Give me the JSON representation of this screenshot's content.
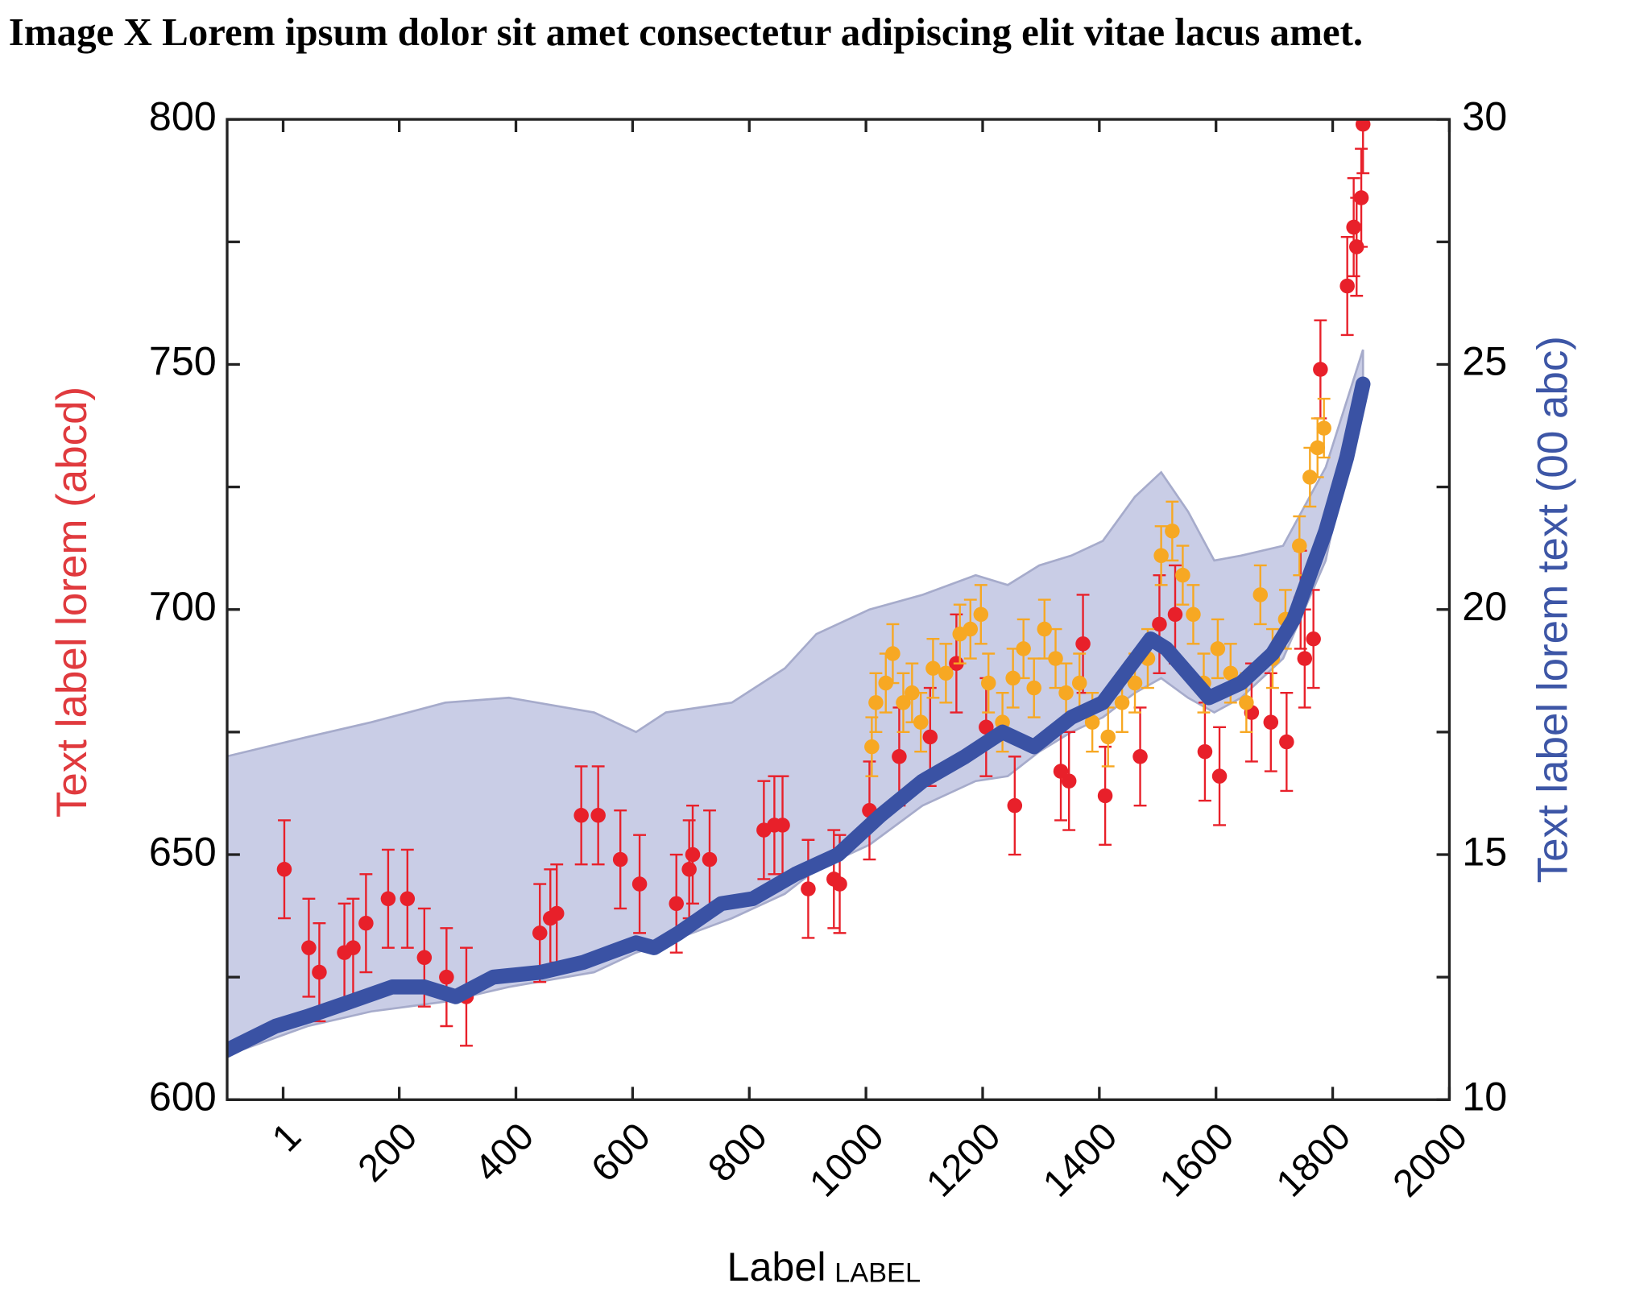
{
  "chart_data": {
    "type": "errorbar",
    "title": "Image X  Lorem ipsum dolor sit amet consectetur adipiscing elit vitae lacus amet.",
    "xlabel": "Label",
    "xlabel_unit": "LABEL",
    "ylabel": "Text label lorem (abcd)",
    "y2label": "Text label lorem text (00 abc)",
    "xlim": [
      -95,
      2000
    ],
    "xticks": [
      1,
      200,
      400,
      600,
      800,
      1000,
      1200,
      1400,
      1600,
      1800,
      2000
    ],
    "ylim": [
      600,
      800
    ],
    "yticks": [
      600,
      650,
      700,
      750,
      800
    ],
    "yminorticks": [
      625,
      675,
      725,
      775
    ],
    "y2lim": [
      10,
      30
    ],
    "y2ticks": [
      10,
      15,
      20,
      25,
      30
    ],
    "y2minorticks": [
      12.5,
      17.5,
      22.5,
      27.5
    ],
    "ylabel_color": "#e03a3e",
    "y2label_color": "#3d56a6",
    "series": [
      {
        "type": "band",
        "axis": "y2",
        "color": "#c9cde6",
        "edge_color": "#a6abcb",
        "x": [
          -97,
          43,
          152,
          279,
          388,
          534,
          606,
          657,
          770,
          861,
          915,
          1006,
          1097,
          1188,
          1243,
          1297,
          1352,
          1406,
          1461,
          1506,
          1552,
          1597,
          1643,
          1715,
          1788,
          1852
        ],
        "upper": [
          17.0,
          17.4,
          17.7,
          18.1,
          18.2,
          17.9,
          17.5,
          17.9,
          18.1,
          18.8,
          19.5,
          20.0,
          20.3,
          20.7,
          20.5,
          20.9,
          21.1,
          21.4,
          22.3,
          22.8,
          22.0,
          21.0,
          21.1,
          21.3,
          22.9,
          25.3
        ],
        "lower": [
          10.9,
          11.5,
          11.8,
          12.0,
          12.3,
          12.6,
          13.0,
          13.2,
          13.7,
          14.2,
          14.7,
          15.2,
          16.0,
          16.5,
          16.6,
          17.1,
          17.5,
          17.8,
          18.3,
          18.6,
          18.2,
          17.9,
          18.2,
          19.0,
          21.0,
          24.6
        ]
      },
      {
        "type": "errorbar",
        "color": "#e8202a",
        "x": [
          3,
          45,
          63,
          106,
          121,
          143,
          181,
          214,
          243,
          281,
          315,
          441,
          459,
          470,
          512,
          541,
          579,
          612,
          675,
          697,
          703,
          732,
          825,
          843,
          857,
          901,
          945,
          955,
          1006,
          1057,
          1110,
          1155,
          1206,
          1255,
          1334,
          1348,
          1372,
          1410,
          1470,
          1503,
          1530,
          1581,
          1606,
          1661,
          1694,
          1721,
          1745,
          1752,
          1767,
          1779,
          1825,
          1836,
          1841,
          1849,
          1852
        ],
        "values": [
          647,
          631,
          626,
          630,
          631,
          636,
          641,
          641,
          629,
          625,
          621,
          634,
          637,
          638,
          658,
          658,
          649,
          644,
          640,
          647,
          650,
          649,
          655,
          656,
          656,
          643,
          645,
          644,
          659,
          670,
          674,
          689,
          676,
          660,
          667,
          665,
          693,
          662,
          670,
          697,
          699,
          671,
          666,
          679,
          677,
          673,
          702,
          690,
          694,
          749,
          766,
          778,
          774,
          784,
          799
        ],
        "errors": [
          10,
          10,
          10,
          10,
          10,
          10,
          10,
          10,
          10,
          10,
          10,
          10,
          10,
          10,
          10,
          10,
          10,
          10,
          10,
          10,
          10,
          10,
          10,
          10,
          10,
          10,
          10,
          10,
          10,
          10,
          10,
          10,
          10,
          10,
          10,
          10,
          10,
          10,
          10,
          10,
          10,
          10,
          10,
          10,
          10,
          10,
          10,
          10,
          10,
          10,
          10,
          10,
          10,
          10,
          10
        ]
      },
      {
        "type": "errorbar",
        "color": "#f7a823",
        "x": [
          1010,
          1017,
          1034,
          1046,
          1064,
          1079,
          1094,
          1115,
          1137,
          1161,
          1179,
          1197,
          1210,
          1234,
          1252,
          1270,
          1288,
          1306,
          1325,
          1343,
          1366,
          1388,
          1415,
          1439,
          1461,
          1483,
          1506,
          1525,
          1543,
          1561,
          1579,
          1603,
          1625,
          1652,
          1676,
          1697,
          1719,
          1743,
          1761,
          1774,
          1785
        ],
        "values": [
          672,
          681,
          685,
          691,
          681,
          683,
          677,
          688,
          687,
          695,
          696,
          699,
          685,
          677,
          686,
          692,
          684,
          696,
          690,
          683,
          685,
          677,
          674,
          681,
          685,
          690,
          711,
          716,
          707,
          699,
          685,
          692,
          687,
          681,
          703,
          690,
          698,
          713,
          727,
          733,
          737
        ],
        "errors": [
          6,
          6,
          6,
          6,
          6,
          6,
          6,
          6,
          6,
          6,
          6,
          6,
          6,
          6,
          6,
          6,
          6,
          6,
          6,
          6,
          6,
          6,
          6,
          6,
          6,
          6,
          6,
          6,
          6,
          6,
          6,
          6,
          6,
          6,
          6,
          6,
          6,
          6,
          6,
          6,
          6
        ]
      },
      {
        "type": "line",
        "axis": "y2",
        "color": "#3a52a4",
        "x": [
          -97,
          -12,
          43,
          116,
          188,
          243,
          297,
          361,
          443,
          515,
          606,
          637,
          679,
          752,
          806,
          879,
          952,
          1025,
          1097,
          1170,
          1234,
          1288,
          1352,
          1406,
          1488,
          1515,
          1588,
          1643,
          1697,
          1733,
          1788,
          1824,
          1852
        ],
        "values": [
          11.0,
          11.5,
          11.7,
          12.0,
          12.3,
          12.3,
          12.1,
          12.5,
          12.6,
          12.8,
          13.2,
          13.1,
          13.4,
          14.0,
          14.1,
          14.6,
          15.0,
          15.8,
          16.5,
          17.0,
          17.5,
          17.2,
          17.8,
          18.1,
          19.4,
          19.2,
          18.2,
          18.5,
          19.1,
          19.8,
          21.6,
          23.1,
          24.6
        ]
      }
    ]
  }
}
